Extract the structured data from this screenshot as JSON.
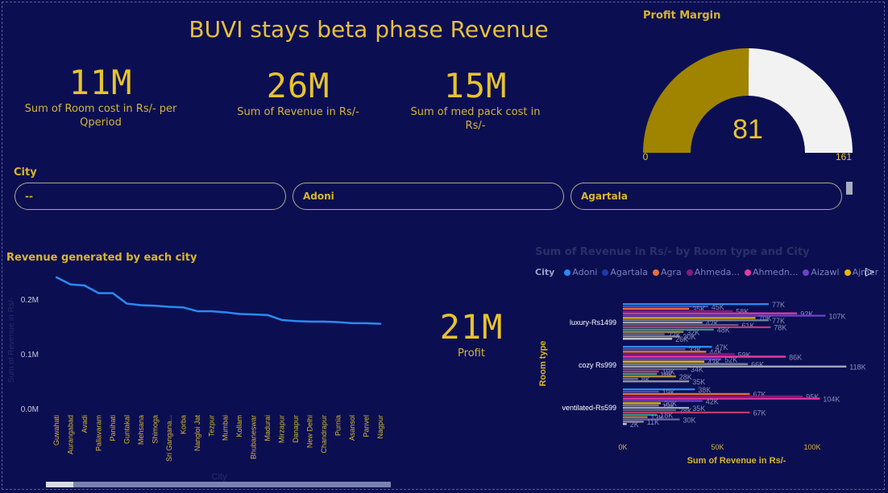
{
  "title": "BUVI stays beta phase Revenue",
  "kpis": {
    "room_cost": {
      "value": "11M",
      "label": "Sum of Room cost in Rs/- per Qperiod"
    },
    "revenue": {
      "value": "26M",
      "label": "Sum of Revenue in Rs/-"
    },
    "med_pack": {
      "value": "15M",
      "label": "Sum of med pack cost in Rs/-"
    },
    "profit": {
      "value": "21M",
      "label": "Profit"
    }
  },
  "gauge": {
    "title": "Profit Margin",
    "value": 81,
    "min": 0,
    "max": 161,
    "fill_color": "#a08400",
    "track_color": "#f2f2f2"
  },
  "slicer": {
    "label": "City",
    "items": [
      "--",
      "Adoni",
      "Agartala"
    ]
  },
  "chart_data": [
    {
      "type": "line",
      "title": "Revenue generated by each city",
      "xlabel": "City",
      "ylabel": "Sum of Revenue in Rs/-",
      "categories": [
        "Guwahati",
        "Aurangabad",
        "Avadi",
        "Pallavaram",
        "Panihati",
        "Guntakal",
        "Mehsana",
        "Shimoga",
        "Sri Ganganagar",
        "Korba",
        "Nangloi Jat",
        "Tezpur",
        "Mumbai",
        "Kollam",
        "Bhubaneswar",
        "Madurai",
        "Mirzapur",
        "Danapur",
        "New Delhi",
        "Chandrapur",
        "Purnia",
        "Asansol",
        "Panvel",
        "Nagpur"
      ],
      "category_labels": [
        "Guwahati",
        "Aurangabad",
        "Avadi",
        "Pallavaram",
        "Panihati",
        "Guntakal",
        "Mehsana",
        "Shimoga",
        "Sri Gangana...",
        "Korba",
        "Nangloi Jat",
        "Tezpur",
        "Mumbai",
        "Kollam",
        "Bhubaneswar",
        "Madurai",
        "Mirzapur",
        "Danapur",
        "New Delhi",
        "Chandrapur",
        "Purnia",
        "Asansol",
        "Panvel",
        "Nagpur"
      ],
      "values": [
        0.24,
        0.227,
        0.225,
        0.211,
        0.211,
        0.192,
        0.189,
        0.188,
        0.186,
        0.185,
        0.178,
        0.178,
        0.176,
        0.173,
        0.172,
        0.171,
        0.162,
        0.16,
        0.159,
        0.159,
        0.158,
        0.156,
        0.156,
        0.155
      ],
      "yticks": [
        "0.0M",
        "0.1M",
        "0.2M"
      ],
      "ylim": [
        0,
        0.25
      ],
      "color": "#2a8af0"
    },
    {
      "type": "bar",
      "title": "Sum of Revenue in Rs/- by Room type and City",
      "xlabel": "Sum of Revenue in Rs/-",
      "ylabel": "Room type",
      "xticks": [
        "0K",
        "50K",
        "100K"
      ],
      "xlim": [
        0,
        120
      ],
      "legend_title": "City",
      "legend": [
        {
          "name": "Adoni",
          "color": "#2a8af0"
        },
        {
          "name": "Agartala",
          "color": "#2038a8"
        },
        {
          "name": "Agra",
          "color": "#e8703a"
        },
        {
          "name": "Ahmeda...",
          "color": "#8a1a7a"
        },
        {
          "name": "Ahmedn...",
          "color": "#e83aa0"
        },
        {
          "name": "Aizawl",
          "color": "#7040c8"
        },
        {
          "name": "Ajmer",
          "color": "#e8b800"
        }
      ],
      "groups": [
        {
          "name": "luxury-Rs1499",
          "labels": [
            "77K",
            "45K",
            "35K",
            "58K",
            "92K",
            "107K",
            "70K",
            "77K",
            "42K",
            "61K",
            "78K",
            "48K",
            "32K",
            "22K",
            "30K",
            "26K"
          ]
        },
        {
          "name": "cozy Rs999",
          "labels": [
            "47K",
            "33K",
            "44K",
            "59K",
            "86K",
            "52K",
            "43K",
            "66K",
            "118K",
            "34K",
            "19K",
            "18K",
            "28K",
            "8K",
            "35K"
          ]
        },
        {
          "name": "ventilated-Rs599",
          "labels": [
            "38K",
            "19K",
            "67K",
            "95K",
            "104K",
            "42K",
            "20K",
            "19K",
            "35K",
            "28K",
            "67K",
            "18K",
            "13K",
            "30K",
            "11K",
            "2K"
          ]
        }
      ]
    }
  ]
}
